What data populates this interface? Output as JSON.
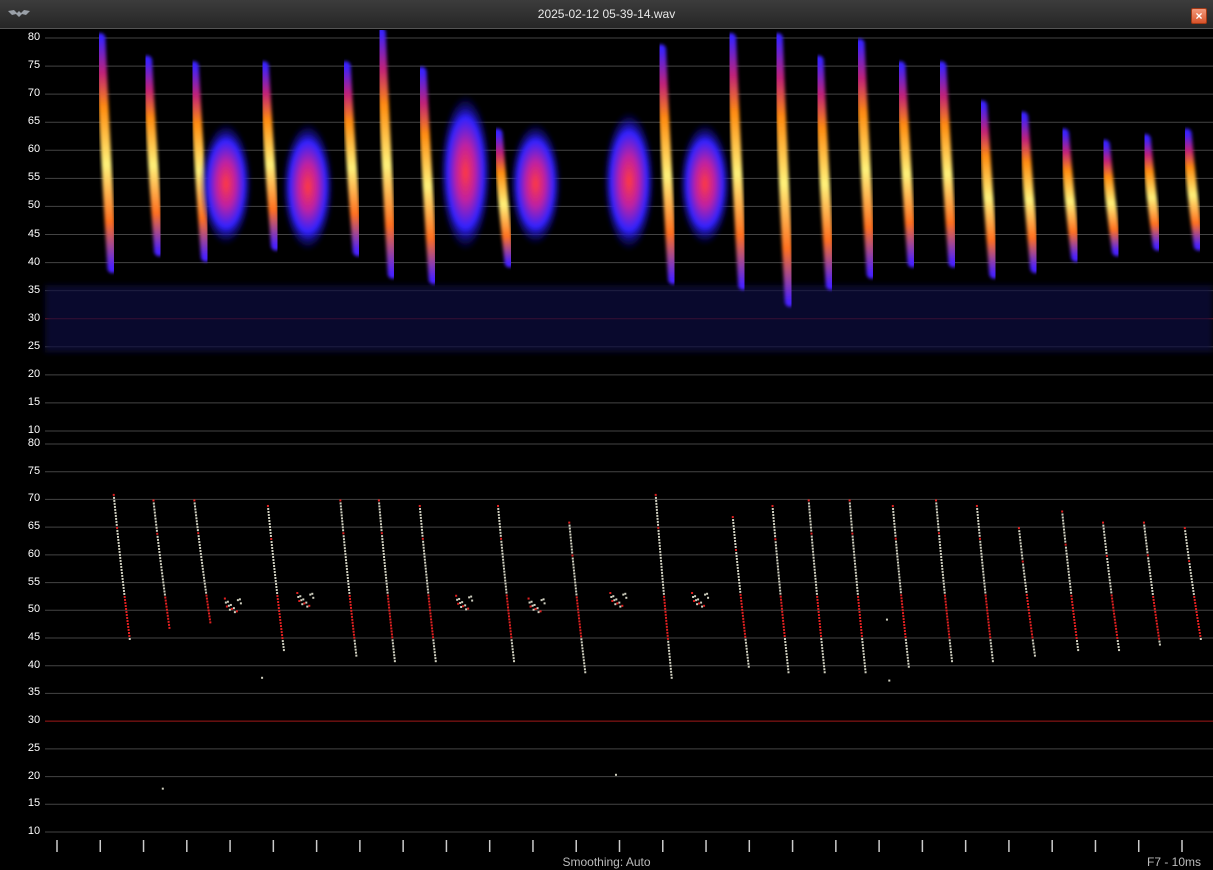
{
  "window": {
    "title": "2025-02-12 05-39-14.wav",
    "close_icon": "close-icon",
    "app_icon": "bat-icon"
  },
  "spectrogram_panel": {
    "y_ticks": [
      "80",
      "75",
      "70",
      "65",
      "60",
      "55",
      "50",
      "45",
      "40",
      "35",
      "30",
      "25",
      "20",
      "15",
      "10"
    ],
    "reference_line_khz": 30,
    "palette": [
      "#1a1aff",
      "#7a2cff",
      "#e0207a",
      "#ff5a20",
      "#ffb000",
      "#fff27a"
    ]
  },
  "zero_crossing_panel": {
    "y_ticks": [
      "80",
      "75",
      "70",
      "65",
      "60",
      "55",
      "50",
      "45",
      "40",
      "35",
      "30",
      "25",
      "20",
      "15",
      "10"
    ],
    "reference_line_khz": 30,
    "point_colors": {
      "normal": "#cfcfbf",
      "highlight": "#e02020"
    }
  },
  "chart_data": [
    {
      "type": "heatmap",
      "title": "",
      "ylabel": "",
      "ylim": [
        10,
        80
      ],
      "series": [
        {
          "kind": "calls",
          "calls": [
            {
              "x": 0.05,
              "y_start": 80,
              "y_end": 39
            },
            {
              "x": 0.09,
              "y_start": 76,
              "y_end": 42
            },
            {
              "x": 0.13,
              "y_start": 75,
              "y_end": 41
            },
            {
              "x": 0.19,
              "y_start": 75,
              "y_end": 43
            },
            {
              "x": 0.26,
              "y_start": 75,
              "y_end": 42
            },
            {
              "x": 0.29,
              "y_start": 81,
              "y_end": 38
            },
            {
              "x": 0.325,
              "y_start": 74,
              "y_end": 37
            },
            {
              "x": 0.39,
              "y_start": 63,
              "y_end": 40
            },
            {
              "x": 0.53,
              "y_start": 78,
              "y_end": 37
            },
            {
              "x": 0.59,
              "y_start": 80,
              "y_end": 36
            },
            {
              "x": 0.63,
              "y_start": 80,
              "y_end": 33
            },
            {
              "x": 0.665,
              "y_start": 76,
              "y_end": 36
            },
            {
              "x": 0.7,
              "y_start": 79,
              "y_end": 38
            },
            {
              "x": 0.735,
              "y_start": 75,
              "y_end": 40
            },
            {
              "x": 0.77,
              "y_start": 75,
              "y_end": 40
            },
            {
              "x": 0.805,
              "y_start": 68,
              "y_end": 38
            },
            {
              "x": 0.84,
              "y_start": 66,
              "y_end": 39
            },
            {
              "x": 0.875,
              "y_start": 63,
              "y_end": 41
            },
            {
              "x": 0.91,
              "y_start": 61,
              "y_end": 42
            },
            {
              "x": 0.945,
              "y_start": 62,
              "y_end": 43
            },
            {
              "x": 0.98,
              "y_start": 63,
              "y_end": 43
            }
          ]
        },
        {
          "kind": "noise_bursts",
          "bursts": [
            {
              "x": 0.155,
              "ymin": 43,
              "ymax": 65
            },
            {
              "x": 0.225,
              "ymin": 42,
              "ymax": 65
            },
            {
              "x": 0.36,
              "ymin": 42,
              "ymax": 70
            },
            {
              "x": 0.42,
              "ymin": 43,
              "ymax": 65
            },
            {
              "x": 0.5,
              "ymin": 42,
              "ymax": 67
            },
            {
              "x": 0.565,
              "ymin": 43,
              "ymax": 65
            }
          ]
        }
      ]
    },
    {
      "type": "scatter",
      "title": "",
      "ylabel": "",
      "ylim": [
        10,
        80
      ],
      "series": [
        {
          "kind": "calls",
          "calls": [
            {
              "x": 0.058,
              "y_start": 71,
              "y_end": 45
            },
            {
              "x": 0.092,
              "y_start": 70,
              "y_end": 47
            },
            {
              "x": 0.127,
              "y_start": 70,
              "y_end": 48
            },
            {
              "x": 0.19,
              "y_start": 69,
              "y_end": 43
            },
            {
              "x": 0.252,
              "y_start": 70,
              "y_end": 42
            },
            {
              "x": 0.285,
              "y_start": 70,
              "y_end": 41
            },
            {
              "x": 0.32,
              "y_start": 69,
              "y_end": 41
            },
            {
              "x": 0.387,
              "y_start": 69,
              "y_end": 41
            },
            {
              "x": 0.448,
              "y_start": 66,
              "y_end": 39
            },
            {
              "x": 0.522,
              "y_start": 71,
              "y_end": 38
            },
            {
              "x": 0.588,
              "y_start": 67,
              "y_end": 40
            },
            {
              "x": 0.622,
              "y_start": 69,
              "y_end": 39
            },
            {
              "x": 0.653,
              "y_start": 70,
              "y_end": 39
            },
            {
              "x": 0.688,
              "y_start": 70,
              "y_end": 39
            },
            {
              "x": 0.725,
              "y_start": 69,
              "y_end": 40
            },
            {
              "x": 0.762,
              "y_start": 70,
              "y_end": 41
            },
            {
              "x": 0.797,
              "y_start": 69,
              "y_end": 41
            },
            {
              "x": 0.833,
              "y_start": 65,
              "y_end": 42
            },
            {
              "x": 0.87,
              "y_start": 68,
              "y_end": 43
            },
            {
              "x": 0.905,
              "y_start": 66,
              "y_end": 43
            },
            {
              "x": 0.94,
              "y_start": 66,
              "y_end": 44
            },
            {
              "x": 0.975,
              "y_start": 65,
              "y_end": 45
            }
          ]
        },
        {
          "kind": "clusters",
          "clusters": [
            {
              "x": 0.16,
              "y": 51
            },
            {
              "x": 0.222,
              "y": 52
            },
            {
              "x": 0.358,
              "y": 51.5
            },
            {
              "x": 0.42,
              "y": 51
            },
            {
              "x": 0.49,
              "y": 52
            },
            {
              "x": 0.56,
              "y": 52
            }
          ]
        },
        {
          "kind": "stray",
          "points": [
            {
              "x": 0.185,
              "y": 38
            },
            {
              "x": 0.1,
              "y": 18
            },
            {
              "x": 0.488,
              "y": 20.5
            },
            {
              "x": 0.722,
              "y": 37.5
            },
            {
              "x": 0.72,
              "y": 48.5
            }
          ]
        }
      ]
    }
  ],
  "time_ticks_count": 27,
  "status": {
    "smoothing_label": "Smoothing: Auto",
    "resolution_label": "F7 - 10ms"
  }
}
